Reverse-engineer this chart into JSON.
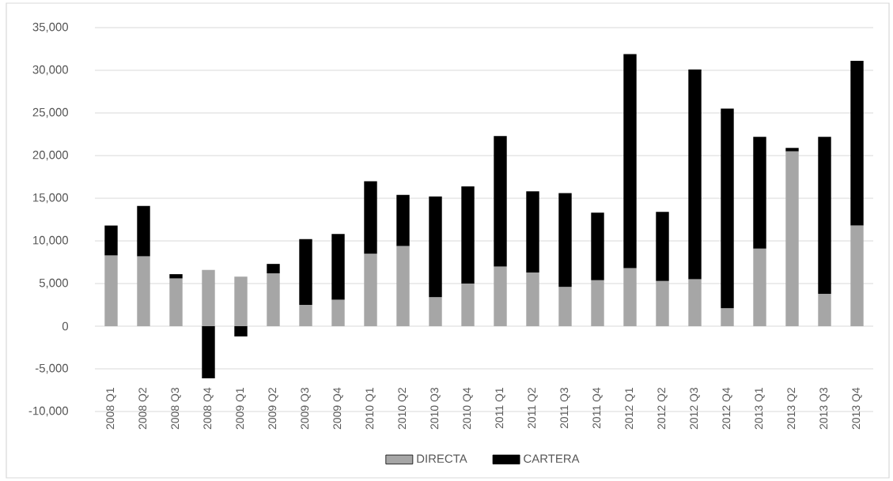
{
  "chart_data": {
    "type": "bar",
    "stacked": true,
    "categories": [
      "2008 Q1",
      "2008 Q2",
      "2008 Q3",
      "2008 Q4",
      "2009 Q1",
      "2009 Q2",
      "2009 Q3",
      "2009 Q4",
      "2010 Q1",
      "2010 Q2",
      "2010 Q3",
      "2010 Q4",
      "2011 Q1",
      "2011 Q2",
      "2011 Q3",
      "2011 Q4",
      "2012 Q1",
      "2012 Q2",
      "2012 Q3",
      "2012 Q4",
      "2013 Q1",
      "2013 Q2",
      "2013 Q3",
      "2013 Q4"
    ],
    "series": [
      {
        "name": "DIRECTA",
        "color": "#a6a6a6",
        "values": [
          8300,
          8200,
          5600,
          6600,
          5800,
          6200,
          2500,
          3100,
          8500,
          9400,
          3400,
          5000,
          7000,
          6300,
          4600,
          5400,
          6800,
          5300,
          5500,
          2100,
          9100,
          20500,
          3800,
          11800
        ]
      },
      {
        "name": "CARTERA",
        "color": "#000000",
        "values": [
          3500,
          5900,
          500,
          -6100,
          -1200,
          1100,
          7700,
          7700,
          8500,
          6000,
          11800,
          11400,
          15300,
          9500,
          11000,
          7900,
          25100,
          8100,
          24600,
          23400,
          13100,
          400,
          18400,
          19300
        ]
      }
    ],
    "ylim": [
      -10000,
      35000
    ],
    "yticks": [
      {
        "value": -10000,
        "label": "-10,000"
      },
      {
        "value": -5000,
        "label": "-5,000"
      },
      0,
      {
        "value": 5000,
        "label": "5,000"
      },
      {
        "value": 10000,
        "label": "10,000"
      },
      {
        "value": 15000,
        "label": "15,000"
      },
      {
        "value": 20000,
        "label": "20,000"
      },
      {
        "value": 25000,
        "label": "25,000"
      },
      {
        "value": 30000,
        "label": "30,000"
      },
      {
        "value": 35000,
        "label": "35,000"
      }
    ],
    "grid": "y",
    "legend": "bottom"
  }
}
